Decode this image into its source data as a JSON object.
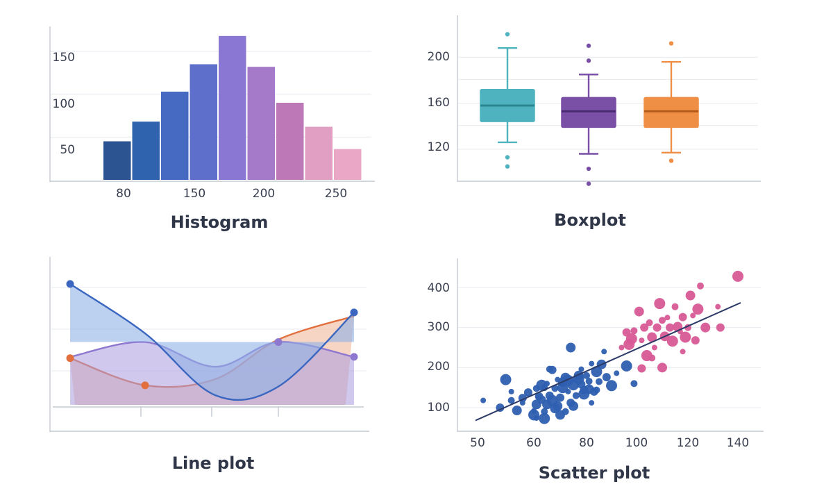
{
  "chart_data": [
    {
      "type": "bar",
      "title": "Histogram",
      "x_ticks": [
        "80",
        "150",
        "200",
        "250"
      ],
      "y_ticks": [
        "50",
        "100",
        "150"
      ],
      "ylim": [
        0,
        180
      ],
      "grid": true,
      "values": [
        45,
        68,
        103,
        135,
        168,
        132,
        90,
        62,
        36
      ],
      "colors": [
        "#2c5490",
        "#2f63ad",
        "#4669c2",
        "#5d6fca",
        "#8a77d3",
        "#a57ac8",
        "#bd78b8",
        "#e19fc4",
        "#eaa8c6"
      ]
    },
    {
      "type": "box",
      "title": "Boxplot",
      "y_ticks": [
        "120",
        "160",
        "200"
      ],
      "ylim": [
        100,
        225
      ],
      "grid": true,
      "boxes": [
        {
          "whisker_low": 126,
          "q1": 144,
          "median": 158,
          "q3": 172,
          "whisker_high": 208,
          "outliers": [
            220,
            113,
            105
          ],
          "color": "#4fb3bf",
          "median_color": "#2a8790"
        },
        {
          "whisker_low": 116,
          "q1": 139,
          "median": 153,
          "q3": 165,
          "whisker_high": 185,
          "outliers": [
            210,
            197,
            103,
            90
          ],
          "color": "#7a4fa6",
          "median_color": "#4a2a70"
        },
        {
          "whisker_low": 117,
          "q1": 139,
          "median": 153,
          "q3": 165,
          "whisker_high": 196,
          "outliers": [
            212,
            110
          ],
          "color": "#ef8e45",
          "median_color": "#b35a1a"
        }
      ]
    },
    {
      "type": "line",
      "title": "Line plot",
      "grid": true,
      "y_range": [
        0,
        1
      ],
      "x": [
        0,
        1,
        2,
        3,
        4
      ],
      "series": [
        {
          "values": [
            0.95,
            0.55,
            0.05,
            0.12,
            0.72
          ],
          "color": "#3a66c0",
          "fill": "#8fb0e6"
        },
        {
          "values": [
            0.36,
            0.48,
            0.28,
            0.48,
            0.36
          ],
          "color": "#8e78cf",
          "fill": "#a99ddf"
        },
        {
          "values": [
            0.35,
            0.13,
            0.18,
            0.5,
            0.69
          ],
          "color": "#e2703f",
          "fill": "#f3c7b1"
        }
      ]
    },
    {
      "type": "scatter",
      "title": "Scatter plot",
      "x_ticks": [
        "50",
        "60",
        "80",
        "100",
        "120",
        "140"
      ],
      "y_ticks": [
        "100",
        "200",
        "300",
        "400"
      ],
      "xlim": [
        45,
        150
      ],
      "ylim": [
        55,
        440
      ],
      "grid": true,
      "series": [
        {
          "color": "#2e5fb0",
          "points": [
            [
              51,
              118
            ],
            [
              54,
              100
            ],
            [
              55,
              170
            ],
            [
              56,
              118
            ],
            [
              57,
              93
            ],
            [
              58,
              112
            ],
            [
              59,
              138
            ],
            [
              60,
              82
            ],
            [
              61,
              148
            ],
            [
              61,
              108
            ],
            [
              62,
              126
            ],
            [
              63,
              120
            ],
            [
              64,
              73
            ],
            [
              64,
              90
            ],
            [
              65,
              108
            ],
            [
              65,
              160
            ],
            [
              66,
              130
            ],
            [
              67,
              118
            ],
            [
              68,
              148
            ],
            [
              69,
              104
            ],
            [
              69,
              170
            ],
            [
              70,
              125
            ],
            [
              71,
              150
            ],
            [
              72,
              90
            ],
            [
              72,
              175
            ],
            [
              73,
              140
            ],
            [
              74,
              112
            ],
            [
              75,
              157
            ],
            [
              76,
              130
            ],
            [
              77,
              180
            ],
            [
              78,
              196
            ],
            [
              78,
              158
            ],
            [
              79,
              134
            ],
            [
              80,
              180
            ],
            [
              81,
              146
            ],
            [
              82,
              112
            ],
            [
              83,
              140
            ],
            [
              84,
              190
            ],
            [
              85,
              165
            ],
            [
              86,
              208
            ],
            [
              87,
              240
            ],
            [
              88,
              176
            ],
            [
              90,
              155
            ],
            [
              66,
              196
            ],
            [
              74,
              250
            ],
            [
              82,
              210
            ],
            [
              79,
              144
            ],
            [
              96,
              204
            ],
            [
              99,
              160
            ],
            [
              71,
              164
            ],
            [
              60,
              92
            ],
            [
              62,
              128
            ],
            [
              77,
              172
            ],
            [
              64,
              150
            ],
            [
              68,
              98
            ],
            [
              56,
              140
            ],
            [
              58,
              124
            ],
            [
              63,
              156
            ],
            [
              84,
              144
            ],
            [
              75,
              104
            ],
            [
              61,
              74
            ],
            [
              67,
              194
            ],
            [
              73,
              168
            ],
            [
              81,
              166
            ],
            [
              70,
              82
            ],
            [
              92,
              186
            ]
          ]
        },
        {
          "color": "#d85a96",
          "points": [
            [
              94,
              250
            ],
            [
              96,
              288
            ],
            [
              97,
              258
            ],
            [
              99,
              292
            ],
            [
              101,
              340
            ],
            [
              102,
              268
            ],
            [
              103,
              300
            ],
            [
              104,
              230
            ],
            [
              105,
              312
            ],
            [
              106,
              276
            ],
            [
              107,
              250
            ],
            [
              108,
              300
            ],
            [
              109,
              360
            ],
            [
              110,
              318
            ],
            [
              111,
              278
            ],
            [
              112,
              325
            ],
            [
              113,
              300
            ],
            [
              114,
              266
            ],
            [
              115,
              352
            ],
            [
              116,
              302
            ],
            [
              117,
              290
            ],
            [
              118,
              326
            ],
            [
              119,
              276
            ],
            [
              120,
              300
            ],
            [
              121,
              380
            ],
            [
              122,
              330
            ],
            [
              123,
              268
            ],
            [
              124,
              346
            ],
            [
              125,
              404
            ],
            [
              127,
              300
            ],
            [
              132,
              352
            ],
            [
              133,
              300
            ],
            [
              140,
              428
            ],
            [
              106,
              224
            ],
            [
              110,
              200
            ],
            [
              118,
              240
            ],
            [
              102,
              198
            ],
            [
              98,
              272
            ]
          ]
        }
      ],
      "trend": [
        [
          50,
          68
        ],
        [
          140,
          362
        ]
      ],
      "trend_color": "#2b3a66"
    }
  ]
}
